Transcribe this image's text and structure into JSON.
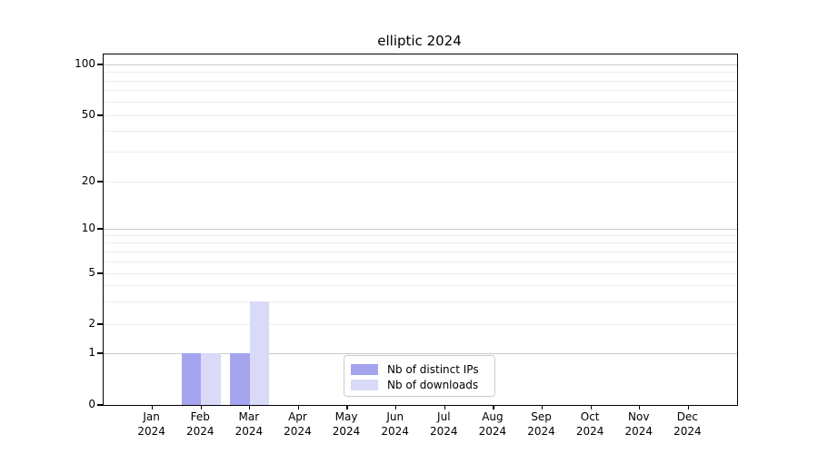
{
  "figure": {
    "title": "elliptic 2024"
  },
  "chart_data": {
    "type": "bar",
    "title": "elliptic 2024",
    "categories": [
      "Jan",
      "Feb",
      "Mar",
      "Apr",
      "May",
      "Jun",
      "Jul",
      "Aug",
      "Sep",
      "Oct",
      "Nov",
      "Dec"
    ],
    "tick_year": "2024",
    "series": [
      {
        "name": "Nb of distinct IPs",
        "color": "#a5a5ef",
        "values": [
          0,
          1,
          1,
          0,
          0,
          0,
          0,
          0,
          0,
          0,
          0,
          0
        ]
      },
      {
        "name": "Nb of downloads",
        "color": "#d9d9f8",
        "values": [
          0,
          1,
          3,
          0,
          0,
          0,
          0,
          0,
          0,
          0,
          0,
          0
        ]
      }
    ],
    "xlabel": "",
    "ylabel": "",
    "yticks": [
      0,
      1,
      2,
      5,
      10,
      20,
      50,
      100
    ],
    "yscale": "symlog (linear below 1, logarithmic above)",
    "ylim": [
      0,
      115
    ],
    "grid": "horizontal major and log-minor gridlines",
    "legend_position": "lower center"
  },
  "colors": {
    "distinct_ips": "#a5a5ef",
    "downloads": "#d9d9f8",
    "grid_major": "#c9c9c9",
    "grid_minor": "#ececec",
    "axis": "#000000"
  }
}
